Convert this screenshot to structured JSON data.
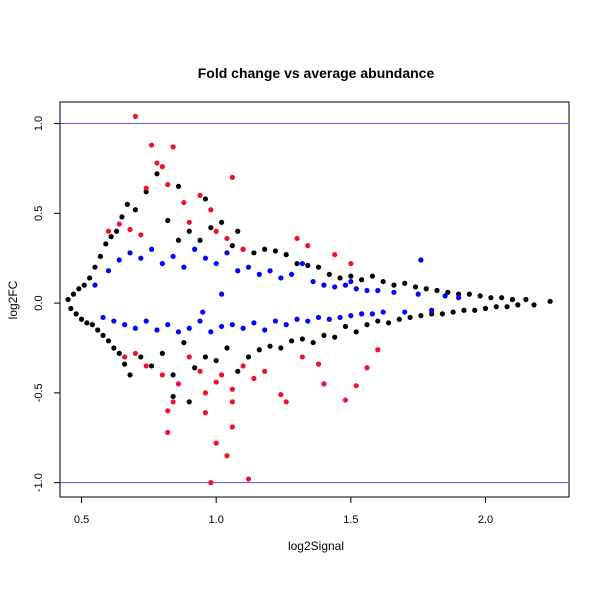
{
  "chart_data": {
    "type": "scatter",
    "title": "Fold change vs average abundance",
    "xlabel": "log2Signal",
    "ylabel": "log2FC",
    "xlim": [
      0.42,
      2.31
    ],
    "ylim": [
      -1.08,
      1.12
    ],
    "x_ticks": [
      0.5,
      1.0,
      1.5,
      2.0
    ],
    "x_tick_labels": [
      "0.5",
      "1.0",
      "1.5",
      "2.0"
    ],
    "y_ticks": [
      -1.0,
      -0.5,
      0.0,
      0.5,
      1.0
    ],
    "y_tick_labels": [
      "-1.0",
      "-0.5",
      "0.0",
      "0.5",
      "1.0"
    ],
    "reference_lines": {
      "y": [
        1.0,
        -1.0
      ],
      "color": "#5555ee"
    },
    "grid": false,
    "series": [
      {
        "color": "#000000",
        "points": [
          [
            0.45,
            0.02
          ],
          [
            0.46,
            -0.03
          ],
          [
            0.47,
            0.05
          ],
          [
            0.48,
            -0.06
          ],
          [
            0.49,
            0.08
          ],
          [
            0.5,
            -0.09
          ],
          [
            0.51,
            0.1
          ],
          [
            0.52,
            -0.11
          ],
          [
            0.53,
            0.14
          ],
          [
            0.54,
            -0.12
          ],
          [
            0.55,
            0.2
          ],
          [
            0.56,
            -0.15
          ],
          [
            0.57,
            0.26
          ],
          [
            0.58,
            -0.18
          ],
          [
            0.59,
            0.33
          ],
          [
            0.6,
            -0.21
          ],
          [
            0.61,
            0.37
          ],
          [
            0.62,
            -0.25
          ],
          [
            0.63,
            0.4
          ],
          [
            0.64,
            -0.28
          ],
          [
            0.65,
            0.48
          ],
          [
            0.66,
            -0.34
          ],
          [
            0.67,
            0.55
          ],
          [
            0.68,
            -0.4
          ],
          [
            0.7,
            0.52
          ],
          [
            0.72,
            -0.3
          ],
          [
            0.74,
            0.62
          ],
          [
            0.76,
            -0.35
          ],
          [
            0.78,
            0.72
          ],
          [
            0.8,
            -0.28
          ],
          [
            0.82,
            0.46
          ],
          [
            0.84,
            -0.4
          ],
          [
            0.86,
            0.65
          ],
          [
            0.88,
            -0.22
          ],
          [
            0.9,
            0.4
          ],
          [
            0.92,
            -0.36
          ],
          [
            0.94,
            0.35
          ],
          [
            0.96,
            -0.3
          ],
          [
            0.98,
            0.42
          ],
          [
            1.0,
            -0.32
          ],
          [
            1.02,
            0.45
          ],
          [
            1.04,
            -0.25
          ],
          [
            1.06,
            0.32
          ],
          [
            1.08,
            -0.38
          ],
          [
            1.1,
            0.3
          ],
          [
            1.12,
            -0.3
          ],
          [
            1.14,
            0.28
          ],
          [
            1.16,
            -0.26
          ],
          [
            1.18,
            0.3
          ],
          [
            1.2,
            -0.24
          ],
          [
            1.22,
            0.29
          ],
          [
            1.24,
            -0.25
          ],
          [
            1.26,
            0.27
          ],
          [
            1.28,
            -0.21
          ],
          [
            1.3,
            0.22
          ],
          [
            1.32,
            -0.2
          ],
          [
            1.34,
            0.21
          ],
          [
            1.36,
            -0.22
          ],
          [
            1.38,
            0.2
          ],
          [
            1.4,
            -0.18
          ],
          [
            1.42,
            0.16
          ],
          [
            1.44,
            -0.19
          ],
          [
            1.46,
            0.14
          ],
          [
            1.48,
            -0.13
          ],
          [
            1.5,
            0.15
          ],
          [
            1.52,
            -0.16
          ],
          [
            1.54,
            0.13
          ],
          [
            1.56,
            -0.12
          ],
          [
            1.58,
            0.15
          ],
          [
            1.6,
            -0.1
          ],
          [
            1.62,
            0.12
          ],
          [
            1.64,
            -0.11
          ],
          [
            1.66,
            0.1
          ],
          [
            1.68,
            -0.09
          ],
          [
            1.7,
            0.11
          ],
          [
            1.72,
            -0.08
          ],
          [
            1.74,
            0.09
          ],
          [
            1.76,
            -0.07
          ],
          [
            1.78,
            0.08
          ],
          [
            1.8,
            -0.06
          ],
          [
            1.82,
            0.07
          ],
          [
            1.84,
            -0.06
          ],
          [
            1.86,
            0.06
          ],
          [
            1.88,
            -0.05
          ],
          [
            1.9,
            0.05
          ],
          [
            1.92,
            -0.04
          ],
          [
            1.94,
            0.05
          ],
          [
            1.96,
            -0.04
          ],
          [
            1.98,
            0.04
          ],
          [
            2.0,
            -0.03
          ],
          [
            2.02,
            0.03
          ],
          [
            2.04,
            -0.02
          ],
          [
            2.06,
            0.03
          ],
          [
            2.08,
            -0.02
          ],
          [
            2.1,
            0.02
          ],
          [
            2.12,
            -0.01
          ],
          [
            2.15,
            0.02
          ],
          [
            2.18,
            -0.01
          ],
          [
            2.24,
            0.01
          ],
          [
            0.84,
            -0.52
          ],
          [
            0.9,
            -0.55
          ],
          [
            0.86,
            0.35
          ],
          [
            0.96,
            0.58
          ],
          [
            1.08,
            0.4
          ]
        ]
      },
      {
        "color": "#0000ff",
        "points": [
          [
            0.55,
            0.1
          ],
          [
            0.58,
            -0.08
          ],
          [
            0.6,
            0.18
          ],
          [
            0.62,
            -0.1
          ],
          [
            0.64,
            0.24
          ],
          [
            0.66,
            -0.12
          ],
          [
            0.68,
            0.28
          ],
          [
            0.7,
            -0.14
          ],
          [
            0.72,
            0.25
          ],
          [
            0.74,
            -0.1
          ],
          [
            0.76,
            0.3
          ],
          [
            0.78,
            -0.15
          ],
          [
            0.8,
            0.22
          ],
          [
            0.82,
            -0.12
          ],
          [
            0.84,
            0.26
          ],
          [
            0.86,
            -0.16
          ],
          [
            0.88,
            0.2
          ],
          [
            0.9,
            -0.14
          ],
          [
            0.92,
            0.3
          ],
          [
            0.94,
            -0.1
          ],
          [
            0.96,
            0.25
          ],
          [
            0.98,
            -0.16
          ],
          [
            1.0,
            0.22
          ],
          [
            1.02,
            -0.13
          ],
          [
            1.04,
            0.28
          ],
          [
            1.06,
            -0.12
          ],
          [
            1.08,
            0.18
          ],
          [
            1.1,
            -0.14
          ],
          [
            1.12,
            0.2
          ],
          [
            1.14,
            -0.11
          ],
          [
            1.16,
            0.16
          ],
          [
            1.18,
            -0.15
          ],
          [
            1.2,
            0.18
          ],
          [
            1.22,
            -0.1
          ],
          [
            1.24,
            0.14
          ],
          [
            1.26,
            -0.12
          ],
          [
            1.28,
            0.16
          ],
          [
            1.3,
            -0.09
          ],
          [
            1.32,
            0.22
          ],
          [
            1.34,
            -0.1
          ],
          [
            1.36,
            0.12
          ],
          [
            1.38,
            -0.08
          ],
          [
            1.4,
            0.1
          ],
          [
            1.42,
            -0.09
          ],
          [
            1.44,
            0.09
          ],
          [
            1.46,
            -0.08
          ],
          [
            1.48,
            0.1
          ],
          [
            1.5,
            -0.07
          ],
          [
            1.52,
            0.08
          ],
          [
            1.54,
            -0.06
          ],
          [
            1.56,
            0.07
          ],
          [
            1.58,
            -0.06
          ],
          [
            1.6,
            0.07
          ],
          [
            1.62,
            -0.05
          ],
          [
            1.66,
            0.06
          ],
          [
            1.7,
            -0.05
          ],
          [
            1.75,
            0.05
          ],
          [
            1.8,
            -0.04
          ],
          [
            1.85,
            0.04
          ],
          [
            1.9,
            0.03
          ],
          [
            1.76,
            0.24
          ],
          [
            1.5,
            0.12
          ],
          [
            1.02,
            0.05
          ],
          [
            0.95,
            -0.05
          ]
        ]
      },
      {
        "color": "#ee1133",
        "points": [
          [
            0.7,
            1.04
          ],
          [
            0.76,
            0.88
          ],
          [
            0.8,
            0.76
          ],
          [
            0.84,
            0.87
          ],
          [
            0.78,
            0.78
          ],
          [
            0.82,
            0.66
          ],
          [
            0.74,
            0.64
          ],
          [
            0.88,
            0.56
          ],
          [
            1.06,
            0.7
          ],
          [
            0.94,
            0.6
          ],
          [
            0.98,
            0.52
          ],
          [
            0.64,
            0.44
          ],
          [
            0.68,
            0.41
          ],
          [
            0.72,
            0.38
          ],
          [
            0.6,
            0.4
          ],
          [
            0.9,
            0.45
          ],
          [
            1.0,
            0.4
          ],
          [
            1.04,
            0.36
          ],
          [
            1.1,
            0.3
          ],
          [
            1.3,
            0.36
          ],
          [
            1.34,
            0.32
          ],
          [
            1.44,
            0.27
          ],
          [
            1.5,
            0.22
          ],
          [
            0.66,
            -0.3
          ],
          [
            0.7,
            -0.28
          ],
          [
            0.74,
            -0.35
          ],
          [
            0.8,
            -0.4
          ],
          [
            0.84,
            -0.55
          ],
          [
            0.82,
            -0.6
          ],
          [
            0.82,
            -0.72
          ],
          [
            0.86,
            -0.45
          ],
          [
            0.9,
            -0.3
          ],
          [
            0.94,
            -0.38
          ],
          [
            0.96,
            -0.5
          ],
          [
            0.96,
            -0.61
          ],
          [
            1.0,
            -0.44
          ],
          [
            1.02,
            -0.4
          ],
          [
            1.06,
            -0.55
          ],
          [
            1.06,
            -0.69
          ],
          [
            1.04,
            -0.85
          ],
          [
            0.98,
            -1.0
          ],
          [
            1.12,
            -0.98
          ],
          [
            1.0,
            -0.78
          ],
          [
            1.06,
            -0.48
          ],
          [
            1.1,
            -0.35
          ],
          [
            1.14,
            -0.42
          ],
          [
            1.18,
            -0.38
          ],
          [
            1.24,
            -0.51
          ],
          [
            1.26,
            -0.55
          ],
          [
            1.32,
            -0.3
          ],
          [
            1.4,
            -0.45
          ],
          [
            1.48,
            -0.54
          ],
          [
            1.52,
            -0.46
          ],
          [
            1.56,
            -0.36
          ],
          [
            1.6,
            -0.26
          ],
          [
            1.38,
            -0.34
          ]
        ]
      }
    ]
  }
}
